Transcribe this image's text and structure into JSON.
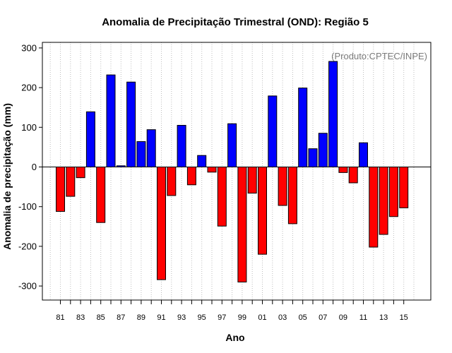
{
  "chart_data": {
    "type": "bar",
    "title": "Anomalia de Precipitação Trimestral (OND): Região 5",
    "xlabel": "Ano",
    "ylabel": "Anomalia de precipitação (mm)",
    "credit": "(Produto:CPTEC/INPE)",
    "ylim": [
      -340,
      320
    ],
    "yticks": [
      -300,
      -200,
      -100,
      0,
      100,
      200,
      300
    ],
    "grid": "vertical-dotted",
    "colors": {
      "positive": "#0000ff",
      "negative": "#ff0000"
    },
    "categories": [
      "81",
      "82",
      "83",
      "84",
      "85",
      "86",
      "87",
      "88",
      "89",
      "90",
      "91",
      "92",
      "93",
      "94",
      "95",
      "96",
      "97",
      "98",
      "99",
      "00",
      "01",
      "02",
      "03",
      "04",
      "05",
      "06",
      "07",
      "08",
      "09",
      "10",
      "11",
      "12",
      "13",
      "14",
      "15"
    ],
    "xtick_labels": [
      "81",
      "83",
      "85",
      "87",
      "89",
      "91",
      "93",
      "95",
      "97",
      "99",
      "01",
      "03",
      "05",
      "07",
      "09",
      "11",
      "13",
      "15"
    ],
    "values": [
      -112,
      -74,
      -27,
      139,
      -140,
      232,
      3,
      214,
      64,
      94,
      -284,
      -72,
      105,
      -45,
      29,
      -13,
      -149,
      109,
      -290,
      -66,
      -220,
      179,
      -97,
      -143,
      199,
      46,
      85,
      266,
      -14,
      -40,
      61,
      -202,
      -170,
      -125,
      -103
    ]
  }
}
